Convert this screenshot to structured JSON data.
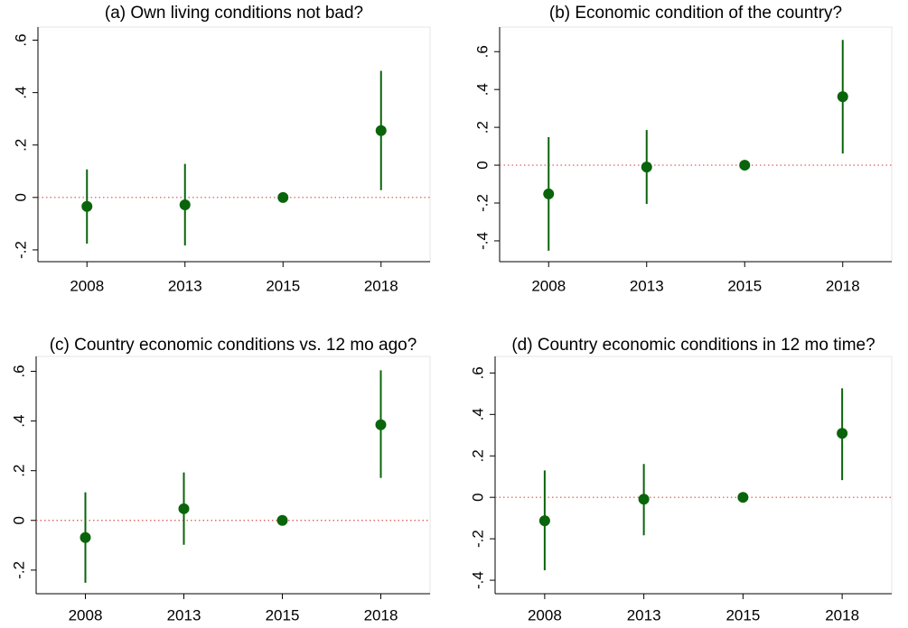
{
  "chart_data": [
    {
      "type": "errorbar",
      "title": "(a) Own living conditions not bad?",
      "color": "#0a640a",
      "refline_color": "#d9534f",
      "categories": [
        "2008",
        "2013",
        "2015",
        "2018"
      ],
      "values": [
        -0.034,
        -0.028,
        0,
        0.255
      ],
      "ci_low": [
        -0.176,
        -0.183,
        0,
        0.028
      ],
      "ci_high": [
        0.107,
        0.128,
        0,
        0.483
      ],
      "ylim": [
        -0.245,
        0.65
      ],
      "yline": 0,
      "yticks": [
        {
          "value": -0.2,
          "label": "-.2"
        },
        0,
        {
          "value": 0.2,
          "label": ".2"
        },
        {
          "value": 0.4,
          "label": ".4"
        },
        {
          "value": 0.6,
          "label": ".6"
        }
      ]
    },
    {
      "type": "errorbar",
      "title": "(b) Economic condition of the country?",
      "color": "#0a640a",
      "refline_color": "#d9534f",
      "categories": [
        "2008",
        "2013",
        "2015",
        "2018"
      ],
      "values": [
        -0.152,
        -0.01,
        0,
        0.362
      ],
      "ci_low": [
        -0.452,
        -0.205,
        0,
        0.062
      ],
      "ci_high": [
        0.148,
        0.186,
        0,
        0.662
      ],
      "ylim": [
        -0.51,
        0.73
      ],
      "yline": 0,
      "yticks": [
        {
          "value": -0.4,
          "label": "-.4"
        },
        {
          "value": -0.2,
          "label": "-.2"
        },
        0,
        {
          "value": 0.2,
          "label": ".2"
        },
        {
          "value": 0.4,
          "label": ".4"
        },
        {
          "value": 0.6,
          "label": ".6"
        }
      ]
    },
    {
      "type": "errorbar",
      "title": "(c) Country economic conditions vs. 12 mo ago?",
      "color": "#0a640a",
      "refline_color": "#d9534f",
      "categories": [
        "2008",
        "2013",
        "2015",
        "2018"
      ],
      "values": [
        -0.069,
        0.047,
        0,
        0.385
      ],
      "ci_low": [
        -0.251,
        -0.098,
        0,
        0.171
      ],
      "ci_high": [
        0.113,
        0.193,
        0,
        0.604
      ],
      "ylim": [
        -0.295,
        0.66
      ],
      "yline": 0,
      "yticks": [
        {
          "value": -0.2,
          "label": "-.2"
        },
        0,
        {
          "value": 0.2,
          "label": ".2"
        },
        {
          "value": 0.4,
          "label": ".4"
        },
        {
          "value": 0.6,
          "label": ".6"
        }
      ]
    },
    {
      "type": "errorbar",
      "title": "(d) Country economic conditions in 12 mo time?",
      "color": "#0a640a",
      "refline_color": "#d9534f",
      "categories": [
        "2008",
        "2013",
        "2015",
        "2018"
      ],
      "values": [
        -0.113,
        -0.009,
        0,
        0.309
      ],
      "ci_low": [
        -0.352,
        -0.183,
        0,
        0.083
      ],
      "ci_high": [
        0.13,
        0.161,
        0,
        0.526
      ],
      "ylim": [
        -0.465,
        0.68
      ],
      "yline": 0,
      "yticks": [
        {
          "value": -0.4,
          "label": "-.4"
        },
        {
          "value": -0.2,
          "label": "-.2"
        },
        0,
        {
          "value": 0.2,
          "label": ".2"
        },
        {
          "value": 0.4,
          "label": ".4"
        },
        {
          "value": 0.6,
          "label": ".6"
        }
      ]
    }
  ]
}
